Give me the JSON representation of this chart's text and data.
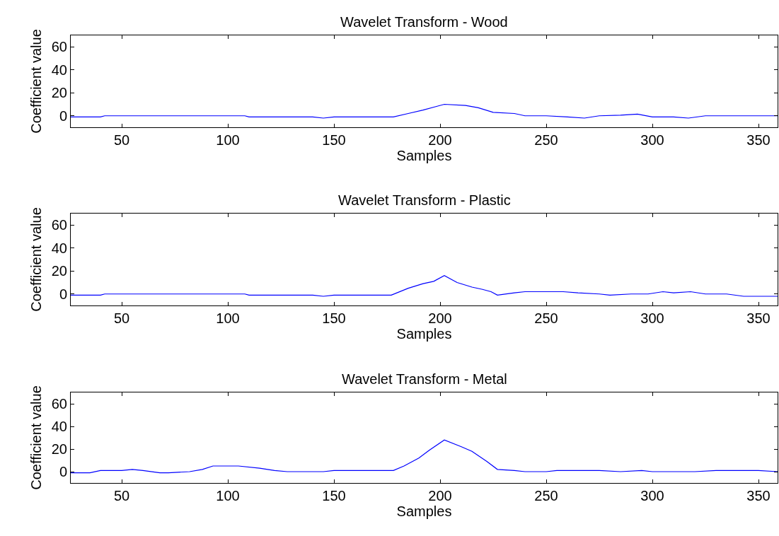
{
  "chart_data": [
    {
      "type": "line",
      "title": "Wavelet Transform - Wood",
      "xlabel": "Samples",
      "ylabel": "Coefficient value",
      "xlim": [
        26,
        359
      ],
      "ylim": [
        -10,
        70
      ],
      "xticks": [
        50,
        100,
        150,
        200,
        250,
        300,
        350
      ],
      "yticks": [
        0,
        20,
        40,
        60
      ],
      "x": [
        26,
        40,
        42,
        108,
        110,
        140,
        145,
        150,
        178,
        185,
        192,
        198,
        202,
        212,
        218,
        225,
        235,
        240,
        250,
        260,
        268,
        275,
        285,
        293,
        300,
        310,
        317,
        325,
        359
      ],
      "series": [
        {
          "color": "#0000ff",
          "values": [
            -1,
            -1,
            0,
            0,
            -1,
            -1,
            -2,
            -1,
            -1,
            2,
            5,
            8,
            10,
            9,
            7,
            3,
            2,
            0,
            0,
            -1,
            -2,
            0,
            0.5,
            1.5,
            -1,
            -1,
            -2,
            0,
            0
          ]
        }
      ]
    },
    {
      "type": "line",
      "title": "Wavelet Transform - Plastic",
      "xlabel": "Samples",
      "ylabel": "Coefficient value",
      "xlim": [
        26,
        359
      ],
      "ylim": [
        -10,
        70
      ],
      "xticks": [
        50,
        100,
        150,
        200,
        250,
        300,
        350
      ],
      "yticks": [
        0,
        20,
        40,
        60
      ],
      "x": [
        26,
        40,
        42,
        108,
        110,
        140,
        145,
        150,
        177,
        185,
        192,
        197,
        202,
        208,
        215,
        220,
        224,
        227,
        235,
        240,
        250,
        258,
        265,
        275,
        280,
        290,
        298,
        305,
        310,
        318,
        325,
        335,
        343,
        359
      ],
      "series": [
        {
          "color": "#0000ff",
          "values": [
            -1,
            -1,
            0,
            0,
            -1,
            -1,
            -2,
            -1,
            -1,
            5,
            9,
            11,
            16,
            10,
            6,
            4,
            2,
            -1,
            1,
            2,
            2,
            2,
            1,
            0,
            -1,
            0,
            0,
            2,
            1,
            2,
            0,
            0,
            -2,
            -2
          ]
        }
      ]
    },
    {
      "type": "line",
      "title": "Wavelet Transform - Metal",
      "xlabel": "Samples",
      "ylabel": "Coefficient value",
      "xlim": [
        26,
        359
      ],
      "ylim": [
        -10,
        70
      ],
      "xticks": [
        50,
        100,
        150,
        200,
        250,
        300,
        350
      ],
      "yticks": [
        0,
        20,
        40,
        60
      ],
      "x": [
        26,
        35,
        40,
        50,
        55,
        60,
        68,
        72,
        82,
        88,
        93,
        105,
        115,
        122,
        128,
        145,
        150,
        178,
        183,
        190,
        195,
        202,
        210,
        215,
        222,
        227,
        235,
        240,
        250,
        255,
        275,
        285,
        295,
        300,
        320,
        330,
        340,
        350,
        359
      ],
      "series": [
        {
          "color": "#0000ff",
          "values": [
            -1,
            -1,
            1,
            1,
            2,
            1,
            -1,
            -1,
            0,
            2,
            5,
            5,
            3,
            1,
            0,
            0,
            1,
            1,
            5,
            12,
            19,
            28,
            22,
            18,
            9,
            2,
            1,
            0,
            0,
            1,
            1,
            0,
            1,
            0,
            0,
            1,
            1,
            1,
            0
          ]
        }
      ]
    }
  ]
}
